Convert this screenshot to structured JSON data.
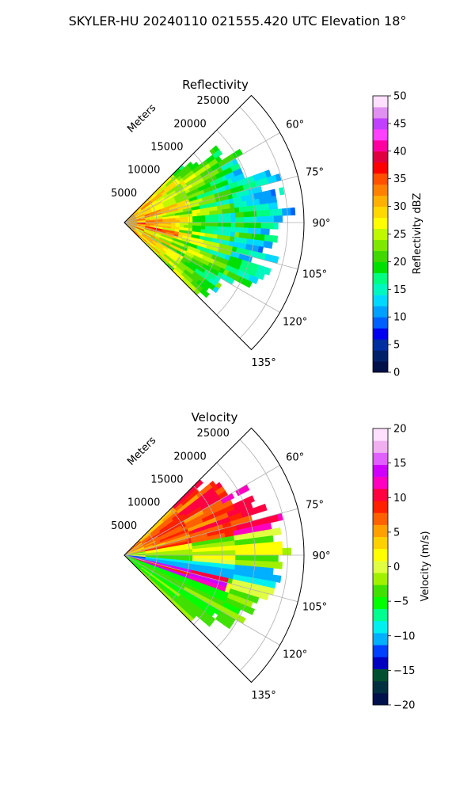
{
  "figure_title": "SKYLER-HU  20240110  021555.420 UTC Elevation 18°",
  "chart_data": [
    {
      "type": "heatmap",
      "title": "Reflectivity",
      "radial_axis_label": "Meters",
      "radial_ticks": [
        5000,
        10000,
        15000,
        20000,
        25000
      ],
      "radial_tick_labels": [
        "5000",
        "10000",
        "15000",
        "20000",
        "25000"
      ],
      "radial_range": [
        0,
        27500
      ],
      "azimuth_range_deg": [
        45,
        135
      ],
      "azimuth_ticks_deg": [
        60,
        75,
        90,
        105,
        120,
        135
      ],
      "azimuth_tick_labels": [
        "60°",
        "75°",
        "90°",
        "105°",
        "120°",
        "135°"
      ],
      "grid": true,
      "colorbar": {
        "label": "Reflectivity dBZ",
        "range": [
          0,
          50
        ],
        "ticks": [
          0,
          5,
          10,
          15,
          20,
          25,
          30,
          35,
          40,
          45,
          50
        ],
        "tick_labels": [
          "0",
          "5",
          "10",
          "15",
          "20",
          "25",
          "30",
          "35",
          "40",
          "45",
          "50"
        ],
        "colors": [
          "#00104a",
          "#00206a",
          "#0030a0",
          "#0000f0",
          "#0060ff",
          "#00a0ff",
          "#00d8ff",
          "#00f8c0",
          "#00ff80",
          "#00e000",
          "#40d800",
          "#80e800",
          "#c0f800",
          "#ffff00",
          "#ffd800",
          "#ffb000",
          "#ff8000",
          "#ff5000",
          "#ff0000",
          "#e00040",
          "#ff00a0",
          "#ff40ff",
          "#c040ff",
          "#e090f0",
          "#ffe0ff"
        ]
      },
      "field_description_values_dbz": {
        "near_range_core": 35,
        "mid_range": 25,
        "outer_edge": 15
      }
    },
    {
      "type": "heatmap",
      "title": "Velocity",
      "radial_axis_label": "Meters",
      "radial_ticks": [
        5000,
        10000,
        15000,
        20000,
        25000
      ],
      "radial_tick_labels": [
        "5000",
        "10000",
        "15000",
        "20000",
        "25000"
      ],
      "radial_range": [
        0,
        27500
      ],
      "azimuth_range_deg": [
        45,
        135
      ],
      "azimuth_ticks_deg": [
        60,
        75,
        90,
        105,
        120,
        135
      ],
      "azimuth_tick_labels": [
        "60°",
        "75°",
        "90°",
        "105°",
        "120°",
        "135°"
      ],
      "grid": true,
      "colorbar": {
        "label": "Velocity (m/s)",
        "range": [
          -20,
          20
        ],
        "ticks": [
          -20,
          -15,
          -10,
          -5,
          0,
          5,
          10,
          15,
          20
        ],
        "tick_labels": [
          "−20",
          "−15",
          "−10",
          "−5",
          "0",
          "5",
          "10",
          "15",
          "20"
        ],
        "colors": [
          "#00104a",
          "#003040",
          "#005030",
          "#0000c0",
          "#0040ff",
          "#00b0ff",
          "#00f0f0",
          "#00ff90",
          "#00ff00",
          "#40e000",
          "#a0f000",
          "#e0ff40",
          "#ffff00",
          "#ffd000",
          "#ffa000",
          "#ff6000",
          "#ff2000",
          "#ff0040",
          "#ff00c0",
          "#d000ff",
          "#e060ff",
          "#f0b0f0",
          "#ffe0ff"
        ]
      },
      "field_description_values_ms": {
        "inbound_band": -12,
        "outbound_upper": 3,
        "shear_strip": 10
      }
    }
  ]
}
